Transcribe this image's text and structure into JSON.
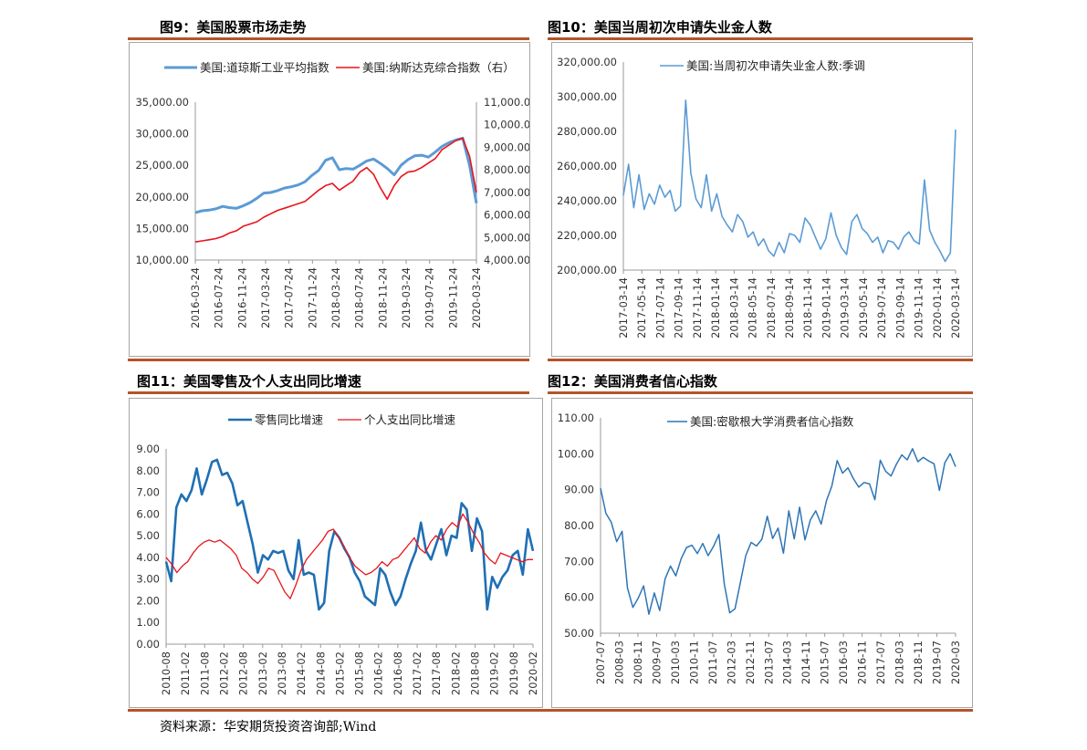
{
  "figures": [
    {
      "title": "图9：美国股票市场走势"
    },
    {
      "title": "图10：美国当周初次申请失业金人数"
    },
    {
      "title": "图11：美国零售及个人支出同比增速"
    },
    {
      "title": "图12：美国消费者信心指数"
    }
  ],
  "source": "资料来源：华安期货投资咨询部;Wind",
  "colors": {
    "rule": "#b5532a",
    "blue_light": "#5b9bd5",
    "blue_dark": "#1f6fb4",
    "red": "#e8141b"
  },
  "chart_data": [
    {
      "type": "line",
      "legend_position": "top",
      "x_tick_labels": [
        "2016-03-24",
        "2016-07-24",
        "2016-11-24",
        "2017-03-24",
        "2017-07-24",
        "2017-11-24",
        "2018-03-24",
        "2018-07-24",
        "2018-11-24",
        "2019-03-24",
        "2019-07-24",
        "2019-11-24",
        "2020-03-24"
      ],
      "y_left": {
        "min": 10000,
        "max": 35000,
        "ticks": [
          "10,000.00",
          "15,000.00",
          "20,000.00",
          "25,000.00",
          "30,000.00",
          "35,000.00"
        ]
      },
      "y_right": {
        "min": 4000,
        "max": 11000,
        "ticks": [
          "4,000.00",
          "5,000.00",
          "6,000.00",
          "7,000.00",
          "8,000.00",
          "9,000.00",
          "10,000.00",
          "11,000.00"
        ]
      },
      "series": [
        {
          "name": "美国:道琼斯工业平均指数",
          "axis": "left",
          "color": "#5b9bd5",
          "values": [
            17500,
            17800,
            17900,
            18100,
            18500,
            18300,
            18200,
            18600,
            19100,
            19800,
            20600,
            20700,
            21000,
            21400,
            21600,
            21900,
            22400,
            23400,
            24200,
            25800,
            26200,
            24300,
            24500,
            24400,
            25000,
            25700,
            26000,
            25300,
            24500,
            23500,
            25000,
            25900,
            26500,
            26600,
            26300,
            27100,
            28000,
            28600,
            29000,
            29300,
            25000,
            19000
          ]
        },
        {
          "name": "美国:纳斯达克综合指数（右）",
          "axis": "right",
          "color": "#e8141b",
          "values": [
            4800,
            4850,
            4900,
            4950,
            5050,
            5200,
            5300,
            5500,
            5600,
            5700,
            5900,
            6050,
            6200,
            6300,
            6400,
            6500,
            6600,
            6850,
            7100,
            7300,
            7400,
            7100,
            7300,
            7500,
            7900,
            8100,
            7800,
            7200,
            6700,
            7300,
            7700,
            7900,
            7950,
            8100,
            8300,
            8500,
            8900,
            9100,
            9300,
            9400,
            8600,
            7000
          ]
        }
      ]
    },
    {
      "type": "line",
      "legend_position": "top",
      "x_tick_labels": [
        "2017-03-14",
        "2017-05-14",
        "2017-07-14",
        "2017-09-14",
        "2017-11-14",
        "2018-01-14",
        "2018-03-14",
        "2018-05-14",
        "2018-07-14",
        "2018-09-14",
        "2018-11-14",
        "2019-01-14",
        "2019-03-14",
        "2019-05-14",
        "2019-07-14",
        "2019-09-14",
        "2019-11-14",
        "2020-01-14",
        "2020-03-14"
      ],
      "y": {
        "min": 200000,
        "max": 320000,
        "ticks": [
          "200,000.00",
          "220,000.00",
          "240,000.00",
          "260,000.00",
          "280,000.00",
          "300,000.00",
          "320,000.00"
        ]
      },
      "series": [
        {
          "name": "美国:当周初次申请失业金人数:季调",
          "color": "#5b9bd5",
          "values": [
            243000,
            261000,
            236000,
            255000,
            235000,
            244000,
            238000,
            249000,
            242000,
            246000,
            234000,
            237000,
            298000,
            256000,
            241000,
            236000,
            255000,
            234000,
            244000,
            231000,
            226000,
            222000,
            232000,
            228000,
            219000,
            222000,
            214000,
            218000,
            211000,
            208000,
            216000,
            210000,
            221000,
            220000,
            216000,
            230000,
            226000,
            219000,
            212000,
            218000,
            233000,
            220000,
            213000,
            209000,
            228000,
            232000,
            224000,
            221000,
            216000,
            219000,
            210000,
            217000,
            216000,
            212000,
            219000,
            222000,
            217000,
            215000,
            252000,
            223000,
            216000,
            211000,
            205000,
            210000,
            281000
          ]
        }
      ]
    },
    {
      "type": "line",
      "legend_position": "top",
      "x_tick_labels": [
        "2010-08",
        "2011-02",
        "2011-08",
        "2012-02",
        "2012-08",
        "2013-02",
        "2013-08",
        "2014-02",
        "2014-08",
        "2015-02",
        "2015-08",
        "2016-02",
        "2016-08",
        "2017-02",
        "2017-08",
        "2018-02",
        "2018-08",
        "2019-02",
        "2019-08",
        "2020-02"
      ],
      "y": {
        "min": 0,
        "max": 9,
        "ticks": [
          "0.00",
          "1.00",
          "2.00",
          "3.00",
          "4.00",
          "5.00",
          "6.00",
          "7.00",
          "8.00",
          "9.00"
        ]
      },
      "series": [
        {
          "name": "零售同比增速",
          "color": "#1f6fb4",
          "values": [
            3.8,
            2.9,
            6.3,
            6.9,
            6.6,
            7.1,
            8.1,
            6.9,
            7.6,
            8.4,
            8.5,
            7.8,
            7.9,
            7.4,
            6.4,
            6.6,
            5.6,
            4.6,
            3.3,
            4.1,
            3.9,
            4.3,
            4.2,
            4.3,
            3.4,
            3.0,
            4.8,
            3.2,
            3.3,
            3.2,
            1.6,
            1.9,
            4.3,
            5.2,
            4.9,
            4.4,
            4.0,
            3.3,
            2.9,
            2.2,
            2.0,
            1.8,
            3.5,
            3.2,
            2.4,
            1.8,
            2.2,
            3.0,
            3.7,
            4.3,
            5.6,
            4.3,
            3.9,
            4.6,
            5.3,
            4.1,
            5.0,
            4.9,
            6.5,
            6.2,
            4.3,
            5.8,
            5.2,
            1.6,
            3.1,
            2.6,
            3.1,
            3.4,
            4.1,
            4.3,
            3.2,
            5.3,
            4.3
          ]
        },
        {
          "name": "个人支出同比增速",
          "color": "#e8141b",
          "values": [
            4.0,
            3.7,
            3.3,
            3.6,
            3.8,
            4.2,
            4.5,
            4.7,
            4.8,
            4.7,
            4.8,
            4.6,
            4.4,
            4.1,
            3.5,
            3.3,
            3.0,
            2.8,
            3.1,
            3.5,
            3.4,
            2.9,
            2.4,
            2.1,
            2.7,
            3.4,
            3.9,
            4.2,
            4.5,
            4.8,
            5.2,
            5.3,
            4.9,
            4.5,
            4.0,
            3.6,
            3.4,
            3.2,
            3.3,
            3.5,
            3.8,
            3.6,
            3.9,
            4.0,
            4.3,
            4.6,
            4.9,
            4.4,
            4.2,
            4.7,
            5.0,
            4.8,
            5.3,
            5.6,
            5.4,
            6.0,
            5.6,
            5.1,
            4.7,
            4.2,
            3.9,
            3.7,
            4.2,
            4.1,
            4.0,
            3.9,
            3.8,
            3.9,
            3.9
          ]
        }
      ]
    },
    {
      "type": "line",
      "legend_position": "top",
      "x_tick_labels": [
        "2007-07",
        "2008-03",
        "2008-11",
        "2009-07",
        "2010-03",
        "2010-11",
        "2011-07",
        "2012-03",
        "2012-11",
        "2013-07",
        "2014-03",
        "2014-11",
        "2015-07",
        "2016-03",
        "2016-11",
        "2017-07",
        "2018-03",
        "2018-11",
        "2019-07",
        "2020-03"
      ],
      "y": {
        "min": 50,
        "max": 110,
        "ticks": [
          "50.00",
          "60.00",
          "70.00",
          "80.00",
          "90.00",
          "100.00",
          "110.00"
        ]
      },
      "series": [
        {
          "name": "美国:密歇根大学消费者信心指数",
          "color": "#2e75b6",
          "values": [
            90.4,
            83.4,
            80.9,
            75.5,
            78.4,
            62.6,
            57.2,
            59.8,
            63.2,
            55.3,
            61.2,
            56.3,
            65.1,
            68.7,
            66.0,
            70.8,
            73.9,
            74.5,
            72.2,
            75.0,
            71.6,
            74.2,
            77.5,
            63.7,
            55.7,
            56.8,
            64.1,
            71.6,
            75.3,
            74.3,
            76.2,
            82.6,
            76.4,
            79.3,
            72.3,
            84.1,
            76.3,
            85.1,
            76.0,
            81.6,
            84.1,
            80.4,
            86.9,
            91.0,
            98.1,
            94.6,
            96.1,
            93.1,
            90.7,
            92.0,
            91.6,
            87.2,
            98.2,
            95.1,
            93.8,
            97.1,
            99.7,
            98.3,
            101.4,
            97.8,
            99.0,
            98.0,
            97.2,
            89.8,
            97.5,
            100.0,
            96.4
          ]
        }
      ]
    }
  ]
}
